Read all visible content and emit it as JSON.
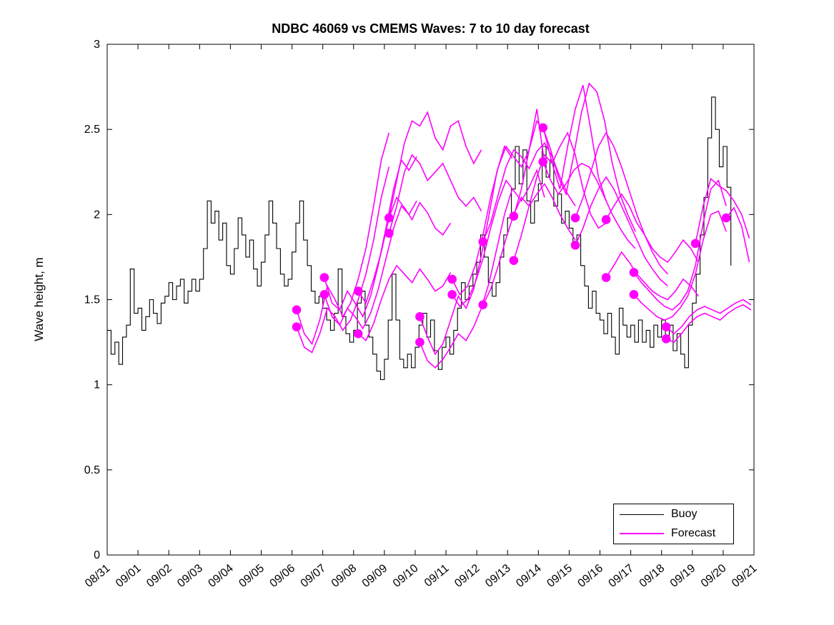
{
  "title": "NDBC 46069 vs CMEMS Waves: 7 to 10 day forecast",
  "ylabel": "Wave height, m",
  "legend": {
    "position": "lower right",
    "items": [
      {
        "label": "Buoy",
        "color": "#000000"
      },
      {
        "label": "Forecast",
        "color": "#ff00ff"
      }
    ]
  },
  "colors": {
    "buoy": "#000000",
    "forecast": "#ff00ff",
    "axis": "#000000",
    "background": "#ffffff"
  },
  "chart_data": {
    "type": "line",
    "title": "NDBC 46069 vs CMEMS Waves: 7 to 10 day forecast",
    "xlabel": "",
    "ylabel": "Wave height, m",
    "ylim": [
      0,
      3
    ],
    "y_ticks": [
      0,
      0.5,
      1,
      1.5,
      2,
      2.5,
      3
    ],
    "y_tick_labels": [
      "0",
      "0.5",
      "1",
      "1.5",
      "2",
      "2.5",
      "3"
    ],
    "x_range_days": [
      0,
      21
    ],
    "x_tick_labels": [
      "08/31",
      "09/01",
      "09/02",
      "09/03",
      "09/04",
      "09/05",
      "09/06",
      "09/07",
      "09/08",
      "09/09",
      "09/10",
      "09/11",
      "09/12",
      "09/13",
      "09/14",
      "09/15",
      "09/16",
      "09/17",
      "09/18",
      "09/19",
      "09/20",
      "09/21"
    ],
    "grid": false,
    "legend_position": "lower right",
    "series": [
      {
        "name": "Buoy",
        "color": "#000000",
        "style": "step",
        "start_day": 0,
        "step_days": 0.125,
        "values": [
          1.32,
          1.18,
          1.25,
          1.12,
          1.28,
          1.35,
          1.68,
          1.42,
          1.45,
          1.32,
          1.4,
          1.5,
          1.42,
          1.36,
          1.48,
          1.52,
          1.6,
          1.5,
          1.58,
          1.62,
          1.48,
          1.55,
          1.62,
          1.55,
          1.62,
          1.8,
          2.08,
          1.95,
          2.02,
          1.85,
          1.95,
          1.7,
          1.65,
          1.8,
          1.98,
          1.88,
          1.75,
          1.85,
          1.68,
          1.58,
          1.72,
          1.88,
          2.08,
          1.95,
          1.8,
          1.65,
          1.58,
          1.62,
          1.78,
          1.95,
          2.08,
          1.85,
          1.7,
          1.55,
          1.48,
          1.52,
          1.45,
          1.38,
          1.32,
          1.42,
          1.68,
          1.4,
          1.3,
          1.25,
          1.32,
          1.48,
          1.55,
          1.35,
          1.28,
          1.18,
          1.08,
          1.03,
          1.15,
          1.38,
          1.65,
          1.38,
          1.15,
          1.1,
          1.18,
          1.1,
          1.22,
          1.35,
          1.42,
          1.28,
          1.38,
          1.2,
          1.09,
          1.22,
          1.28,
          1.18,
          1.32,
          1.45,
          1.6,
          1.5,
          1.58,
          1.65,
          1.72,
          1.88,
          1.75,
          1.6,
          1.52,
          1.6,
          1.75,
          1.88,
          1.98,
          2.15,
          2.4,
          2.18,
          2.38,
          2.08,
          1.95,
          2.08,
          2.18,
          2.4,
          2.22,
          2.32,
          2.05,
          2.12,
          1.95,
          2.02,
          1.92,
          1.8,
          1.88,
          1.7,
          1.58,
          1.45,
          1.55,
          1.42,
          1.38,
          1.3,
          1.42,
          1.28,
          1.18,
          1.45,
          1.35,
          1.28,
          1.35,
          1.25,
          1.38,
          1.25,
          1.32,
          1.22,
          1.35,
          1.28,
          1.38,
          1.26,
          1.35,
          1.2,
          1.3,
          1.18,
          1.1,
          1.35,
          1.48,
          1.65,
          1.88,
          2.1,
          2.45,
          2.69,
          2.5,
          2.28,
          2.4,
          2.16,
          1.7
        ]
      },
      {
        "name": "Forecast",
        "color": "#ff00ff",
        "style": "line-with-start-marker",
        "step_days": 0.25,
        "runs": [
          {
            "start_day": 6.15,
            "values": [
              1.44,
              1.3,
              1.24,
              1.38,
              1.58,
              1.5,
              1.4,
              1.48,
              1.62,
              1.8,
              2.05,
              2.32,
              2.48
            ]
          },
          {
            "start_day": 6.15,
            "values": [
              1.34,
              1.22,
              1.19,
              1.3,
              1.45,
              1.4,
              1.32,
              1.38,
              1.5,
              1.65,
              1.85,
              2.1,
              2.28
            ]
          },
          {
            "start_day": 7.05,
            "values": [
              1.63,
              1.48,
              1.44,
              1.55,
              1.48,
              1.4,
              1.52,
              1.7,
              1.92,
              2.15,
              2.32,
              2.26,
              2.34
            ]
          },
          {
            "start_day": 7.05,
            "values": [
              1.53,
              1.4,
              1.35,
              1.45,
              1.4,
              1.33,
              1.42,
              1.56,
              1.74,
              1.92,
              2.05,
              2.0,
              2.08
            ]
          },
          {
            "start_day": 8.15,
            "values": [
              1.55,
              1.48,
              1.62,
              1.78,
              1.98,
              2.1,
              2.04,
              1.97,
              2.07,
              2.01,
              1.92,
              1.88,
              1.95
            ]
          },
          {
            "start_day": 8.15,
            "values": [
              1.3,
              1.26,
              1.36,
              1.5,
              1.62,
              1.7,
              1.65,
              1.6,
              1.68,
              1.62,
              1.55,
              1.58,
              1.66
            ]
          },
          {
            "start_day": 9.15,
            "values": [
              1.98,
              2.2,
              2.42,
              2.55,
              2.52,
              2.6,
              2.45,
              2.38,
              2.52,
              2.55,
              2.4,
              2.3,
              2.38
            ]
          },
          {
            "start_day": 9.15,
            "values": [
              1.89,
              2.05,
              2.25,
              2.35,
              2.3,
              2.2,
              2.25,
              2.3,
              2.2,
              2.1,
              2.05,
              2.1,
              2.02
            ]
          },
          {
            "start_day": 10.15,
            "values": [
              1.4,
              1.28,
              1.18,
              1.24,
              1.38,
              1.52,
              1.45,
              1.56,
              1.76,
              2.0,
              2.25,
              2.4,
              2.33
            ]
          },
          {
            "start_day": 10.15,
            "values": [
              1.25,
              1.14,
              1.1,
              1.15,
              1.22,
              1.3,
              1.26,
              1.34,
              1.45,
              1.6,
              1.8,
              2.0,
              2.15
            ]
          },
          {
            "start_day": 11.2,
            "values": [
              1.62,
              1.53,
              1.58,
              1.7,
              1.88,
              2.1,
              2.28,
              2.4,
              2.34,
              2.28,
              2.38,
              2.62,
              2.3
            ]
          },
          {
            "start_day": 11.2,
            "values": [
              1.53,
              1.46,
              1.5,
              1.6,
              1.74,
              1.92,
              2.08,
              2.2,
              2.14,
              2.08,
              2.16,
              2.26,
              2.1
            ]
          },
          {
            "start_day": 12.2,
            "values": [
              1.84,
              1.95,
              2.12,
              2.28,
              2.38,
              2.34,
              2.27,
              2.37,
              2.42,
              2.34,
              2.22,
              2.12,
              2.05
            ]
          },
          {
            "start_day": 12.2,
            "values": [
              1.47,
              1.56,
              1.7,
              1.86,
              2.0,
              2.1,
              2.05,
              2.12,
              2.18,
              2.1,
              2.0,
              1.92,
              1.85
            ]
          },
          {
            "start_day": 13.2,
            "values": [
              1.99,
              2.15,
              2.38,
              2.55,
              2.48,
              2.3,
              2.15,
              2.4,
              2.62,
              2.76,
              2.5,
              2.22,
              2.08
            ]
          },
          {
            "start_day": 13.2,
            "values": [
              1.73,
              1.88,
              2.05,
              2.22,
              2.35,
              2.3,
              2.4,
              2.48,
              2.35,
              2.15,
              2.0,
              1.92,
              1.95
            ]
          },
          {
            "start_day": 14.15,
            "values": [
              2.51,
              2.38,
              2.22,
              2.12,
              2.35,
              2.6,
              2.77,
              2.72,
              2.55,
              2.3,
              2.12,
              2.0,
              1.9
            ]
          },
          {
            "start_day": 14.15,
            "values": [
              2.31,
              2.2,
              2.12,
              2.18,
              2.26,
              2.3,
              2.28,
              2.2,
              2.1,
              2.0,
              1.92,
              1.85,
              1.8
            ]
          },
          {
            "start_day": 15.2,
            "values": [
              1.98,
              2.1,
              2.25,
              2.4,
              2.48,
              2.4,
              2.28,
              2.14,
              2.0,
              1.88,
              1.78,
              1.7,
              1.65
            ]
          },
          {
            "start_day": 15.2,
            "values": [
              1.82,
              1.92,
              2.05,
              2.15,
              2.22,
              2.15,
              2.05,
              1.95,
              1.85,
              1.75,
              1.68,
              1.62,
              1.58
            ]
          },
          {
            "start_day": 16.2,
            "values": [
              1.97,
              2.05,
              2.12,
              2.05,
              1.95,
              1.88,
              1.8,
              1.75,
              1.72,
              1.78,
              1.85,
              1.8,
              1.72
            ]
          },
          {
            "start_day": 16.2,
            "values": [
              1.63,
              1.7,
              1.78,
              1.72,
              1.65,
              1.6,
              1.55,
              1.52,
              1.5,
              1.55,
              1.62,
              1.58,
              1.52
            ]
          },
          {
            "start_day": 17.1,
            "values": [
              1.66,
              1.6,
              1.55,
              1.5,
              1.46,
              1.44,
              1.48,
              1.55,
              1.7,
              1.95,
              2.15,
              2.2,
              2.05
            ]
          },
          {
            "start_day": 17.1,
            "values": [
              1.53,
              1.48,
              1.44,
              1.4,
              1.38,
              1.4,
              1.45,
              1.52,
              1.65,
              1.85,
              2.0,
              2.02,
              1.9
            ]
          },
          {
            "start_day": 18.15,
            "values": [
              1.34,
              1.3,
              1.34,
              1.4,
              1.44,
              1.46,
              1.44,
              1.42,
              1.45,
              1.48,
              1.5,
              1.47
            ]
          },
          {
            "start_day": 18.15,
            "values": [
              1.27,
              1.25,
              1.3,
              1.36,
              1.4,
              1.42,
              1.4,
              1.38,
              1.42,
              1.45,
              1.47,
              1.44
            ]
          },
          {
            "start_day": 19.1,
            "values": [
              1.83,
              2.05,
              2.21,
              2.17,
              2.14,
              2.08,
              2.0,
              1.86
            ]
          },
          {
            "start_day": 20.1,
            "values": [
              1.98,
              2.04,
              1.93,
              1.72
            ]
          }
        ]
      }
    ]
  }
}
